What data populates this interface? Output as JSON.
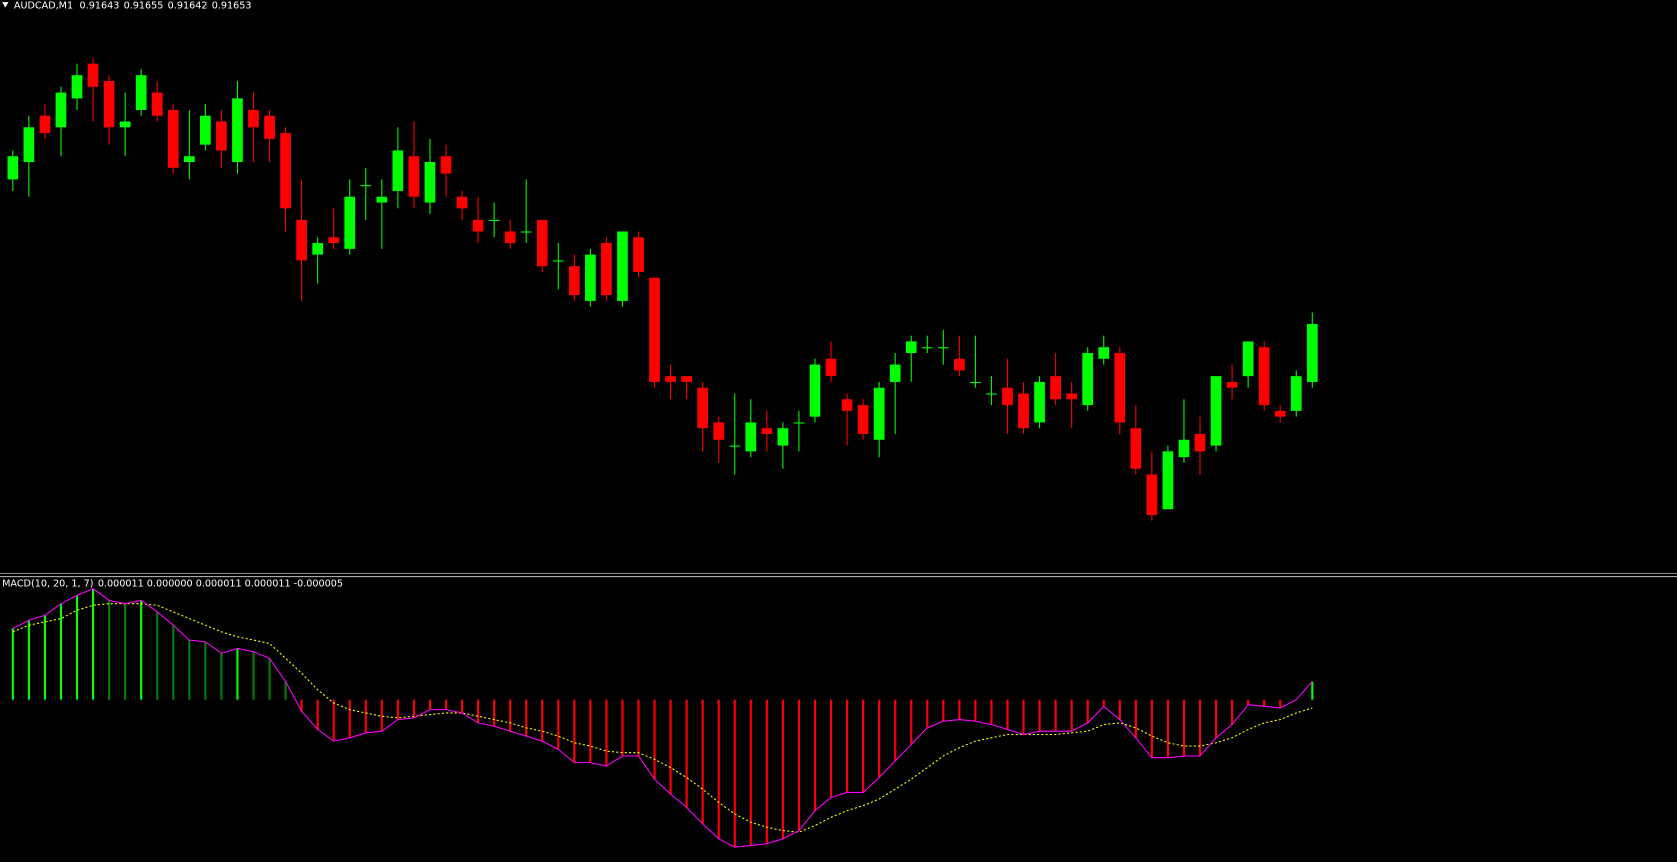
{
  "chart_data": [
    {
      "type": "candlestick",
      "title": "AUDCAD,M1",
      "open": [
        0.91678,
        0.91681,
        0.91689,
        0.91687,
        0.91692,
        0.91698,
        0.91695,
        0.91687,
        0.9169,
        0.91693,
        0.9169,
        0.91681,
        0.91684,
        0.91688,
        0.91681,
        0.9169,
        0.91689,
        0.91686,
        0.91671,
        0.91665,
        0.91668,
        0.91666,
        0.91677,
        0.91674,
        0.91676,
        0.91682,
        0.91674,
        0.91682,
        0.91675,
        0.91671,
        0.91671,
        0.91669,
        0.91669,
        0.91671,
        0.91664,
        0.91663,
        0.91657,
        0.91667,
        0.91657,
        0.91668,
        0.91661,
        0.91644,
        0.91644,
        0.91642,
        0.91636,
        0.91632,
        0.91631,
        0.91635,
        0.91632,
        0.91636,
        0.91637,
        0.91647,
        0.9164,
        0.91639,
        0.91633,
        0.91643,
        0.91648,
        0.91649,
        0.91649,
        0.91647,
        0.91643,
        0.91641,
        0.91642,
        0.91641,
        0.91636,
        0.91644,
        0.91641,
        0.91639,
        0.91647,
        0.91648,
        0.91635,
        0.91627,
        0.91621,
        0.9163,
        0.91634,
        0.91632,
        0.91643,
        0.91644,
        0.91649,
        0.91638,
        0.91638,
        0.91643
      ],
      "high": [
        0.91683,
        0.91689,
        0.91691,
        0.91694,
        0.91698,
        0.91699,
        0.91696,
        0.91693,
        0.91697,
        0.91695,
        0.91691,
        0.9169,
        0.91691,
        0.9169,
        0.91695,
        0.91693,
        0.9169,
        0.91687,
        0.91678,
        0.91668,
        0.91673,
        0.91678,
        0.9168,
        0.91678,
        0.91687,
        0.91688,
        0.91685,
        0.91684,
        0.91676,
        0.91675,
        0.91674,
        0.91671,
        0.91678,
        0.91671,
        0.91667,
        0.91665,
        0.91666,
        0.91668,
        0.91669,
        0.91669,
        0.91661,
        0.91646,
        0.91644,
        0.91643,
        0.91637,
        0.91641,
        0.9164,
        0.91638,
        0.91636,
        0.91638,
        0.91647,
        0.9165,
        0.91641,
        0.9164,
        0.91643,
        0.91648,
        0.91651,
        0.91651,
        0.91652,
        0.91651,
        0.91651,
        0.91644,
        0.91647,
        0.91643,
        0.91644,
        0.91648,
        0.91643,
        0.91649,
        0.91651,
        0.91649,
        0.91639,
        0.91631,
        0.91632,
        0.9164,
        0.91637,
        0.91644,
        0.91646,
        0.9165,
        0.9165,
        0.91639,
        0.91645,
        0.91655
      ],
      "low": [
        0.91676,
        0.91675,
        0.91685,
        0.91682,
        0.9169,
        0.91688,
        0.91684,
        0.91682,
        0.91689,
        0.91688,
        0.91679,
        0.91678,
        0.91683,
        0.9168,
        0.91679,
        0.91681,
        0.91681,
        0.91669,
        0.91657,
        0.9166,
        0.91666,
        0.91665,
        0.91671,
        0.91666,
        0.91673,
        0.91673,
        0.91672,
        0.91675,
        0.91671,
        0.91667,
        0.91668,
        0.91666,
        0.91667,
        0.91662,
        0.91659,
        0.91657,
        0.91656,
        0.91657,
        0.91656,
        0.91661,
        0.91642,
        0.9164,
        0.9164,
        0.91631,
        0.91629,
        0.91627,
        0.9163,
        0.91631,
        0.91628,
        0.91631,
        0.91636,
        0.91643,
        0.91632,
        0.91633,
        0.9163,
        0.91634,
        0.91643,
        0.91648,
        0.91646,
        0.91644,
        0.91642,
        0.91639,
        0.91634,
        0.91634,
        0.91635,
        0.91639,
        0.91635,
        0.91638,
        0.91646,
        0.91634,
        0.91627,
        0.91619,
        0.91621,
        0.91629,
        0.91627,
        0.91631,
        0.9164,
        0.91642,
        0.91638,
        0.91636,
        0.91637,
        0.91642
      ],
      "close": [
        0.91682,
        0.91687,
        0.91686,
        0.91693,
        0.91696,
        0.91694,
        0.91687,
        0.91688,
        0.91696,
        0.91689,
        0.9168,
        0.91682,
        0.91689,
        0.91683,
        0.91692,
        0.91687,
        0.91685,
        0.91673,
        0.91664,
        0.91667,
        0.91667,
        0.91675,
        0.91677,
        0.91675,
        0.91683,
        0.91675,
        0.91681,
        0.91679,
        0.91673,
        0.91669,
        0.91671,
        0.91667,
        0.91669,
        0.91663,
        0.91664,
        0.91658,
        0.91665,
        0.91658,
        0.91669,
        0.91662,
        0.91643,
        0.91643,
        0.91643,
        0.91635,
        0.91633,
        0.91632,
        0.91636,
        0.91634,
        0.91635,
        0.91636,
        0.91646,
        0.91644,
        0.91638,
        0.91634,
        0.91642,
        0.91646,
        0.9165,
        0.91649,
        0.91649,
        0.91645,
        0.91643,
        0.91641,
        0.91639,
        0.91635,
        0.91643,
        0.9164,
        0.9164,
        0.91648,
        0.91649,
        0.91636,
        0.91628,
        0.9162,
        0.91631,
        0.91633,
        0.91631,
        0.91644,
        0.91642,
        0.9165,
        0.91639,
        0.91637,
        0.91644,
        0.91653
      ],
      "ylim": [
        0.9161,
        0.91709
      ],
      "up_color": "#00ff00",
      "down_color": "#ff0000"
    },
    {
      "type": "macd",
      "title": "MACD(10, 20, 1, 7)",
      "readout": "0.000011 0.000000 0.000011 0.000011 -0.000005",
      "macd": [
        4.3e-05,
        4.8e-05,
        5.1e-05,
        5.8e-05,
        6.3e-05,
        6.7e-05,
        6e-05,
        5.8e-05,
        6e-05,
        5.3e-05,
        4.5e-05,
        3.6e-05,
        3.5e-05,
        2.8e-05,
        3.1e-05,
        2.9e-05,
        2.5e-05,
        1.1e-05,
        -7e-06,
        -1.8e-05,
        -2.5e-05,
        -2.3e-05,
        -2e-05,
        -1.9e-05,
        -1.2e-05,
        -1.1e-05,
        -6e-06,
        -6e-06,
        -8e-06,
        -1.4e-05,
        -1.6e-05,
        -1.9e-05,
        -2.2e-05,
        -2.5e-05,
        -3e-05,
        -3.8e-05,
        -3.8e-05,
        -4e-05,
        -3.4e-05,
        -3.4e-05,
        -4.8e-05,
        -5.7e-05,
        -6.5e-05,
        -7.5e-05,
        -8.4e-05,
        -8.9e-05,
        -8.8e-05,
        -8.7e-05,
        -8.4e-05,
        -7.9e-05,
        -6.7e-05,
        -5.9e-05,
        -5.6e-05,
        -5.6e-05,
        -4.7e-05,
        -3.7e-05,
        -2.7e-05,
        -1.7e-05,
        -1.3e-05,
        -1.2e-05,
        -1.3e-05,
        -1.5e-05,
        -1.8e-05,
        -2.1e-05,
        -1.9e-05,
        -1.9e-05,
        -1.9e-05,
        -1.4e-05,
        -4e-06,
        -1.2e-05,
        -2.3e-05,
        -3.5e-05,
        -3.5e-05,
        -3.4e-05,
        -3.4e-05,
        -2.3e-05,
        -1.5e-05,
        -3e-06,
        -4e-06,
        -5e-06,
        0,
        1.1e-05
      ],
      "signal": [
        4.1e-05,
        4.5e-05,
        4.7e-05,
        4.9e-05,
        5.4e-05,
        5.7e-05,
        5.8e-05,
        5.8e-05,
        5.8e-05,
        5.7e-05,
        5.3e-05,
        4.9e-05,
        4.5e-05,
        4.1e-05,
        3.8e-05,
        3.6e-05,
        3.4e-05,
        2.5e-05,
        1.6e-05,
        6e-06,
        -2e-06,
        -6e-06,
        -8e-06,
        -1e-05,
        -1.1e-05,
        -1e-05,
        -9e-06,
        -8e-06,
        -8e-06,
        -1e-05,
        -1.2e-05,
        -1.4e-05,
        -1.7e-05,
        -1.9e-05,
        -2.2e-05,
        -2.6e-05,
        -2.8e-05,
        -3.1e-05,
        -3.2e-05,
        -3.2e-05,
        -3.6e-05,
        -4.1e-05,
        -4.7e-05,
        -5.4e-05,
        -6.2e-05,
        -6.9e-05,
        -7.4e-05,
        -7.7e-05,
        -7.9e-05,
        -8e-05,
        -7.6e-05,
        -7.1e-05,
        -6.7e-05,
        -6.4e-05,
        -6e-05,
        -5.4e-05,
        -4.8e-05,
        -4.1e-05,
        -3.4e-05,
        -2.9e-05,
        -2.5e-05,
        -2.3e-05,
        -2.1e-05,
        -2.1e-05,
        -2.1e-05,
        -2.1e-05,
        -2e-05,
        -1.9e-05,
        -1.5e-05,
        -1.4e-05,
        -1.7e-05,
        -2.2e-05,
        -2.6e-05,
        -2.8e-05,
        -2.8e-05,
        -2.6e-05,
        -2.3e-05,
        -1.8e-05,
        -1.4e-05,
        -1.2e-05,
        -8e-06,
        -5e-06
      ],
      "ylim": [
        -9.8e-05,
        7.4e-05
      ],
      "line_color": "#ff00ff",
      "signal_color": "#ffff00",
      "rising_color": "#00ff00",
      "falling_color": "#008000",
      "negative_color": "#ff0000"
    }
  ]
}
